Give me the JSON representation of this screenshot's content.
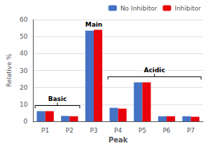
{
  "chart_data": {
    "type": "bar",
    "categories": [
      "P1",
      "P2",
      "P3",
      "P4",
      "P5",
      "P6",
      "P7"
    ],
    "series": [
      {
        "name": "No Inhibitor",
        "color": "#4472C4",
        "values": [
          6,
          3.2,
          53.5,
          8,
          23,
          3,
          3
        ]
      },
      {
        "name": "Inhibitor",
        "color": "#E8000A",
        "values": [
          6,
          3,
          54,
          7.5,
          23,
          3,
          2.7
        ]
      }
    ],
    "xlabel": "Peak",
    "ylabel": "Relative %",
    "ylim": [
      0,
      60
    ],
    "yticks": [
      0,
      10,
      20,
      30,
      40,
      50,
      60
    ],
    "grid": true,
    "legend": "upper right",
    "annotations": [
      {
        "text": "Main",
        "categories": [
          "P3"
        ]
      },
      {
        "text": "Basic",
        "categories": [
          "P1",
          "P2"
        ]
      },
      {
        "text": "Acidic",
        "categories": [
          "P4",
          "P5",
          "P6",
          "P7"
        ]
      }
    ]
  }
}
